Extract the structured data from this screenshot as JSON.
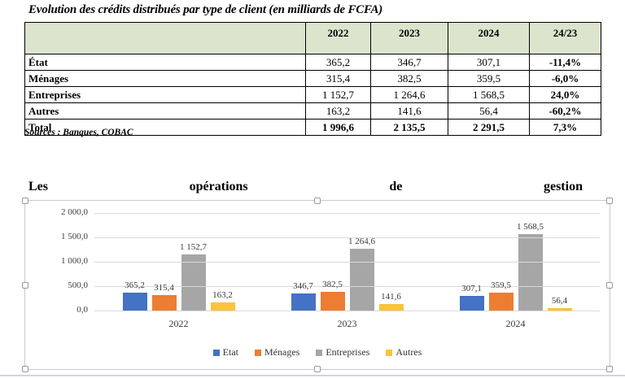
{
  "document": {
    "title": "Evolution des crédits distribués par type de client (en milliards de FCFA)",
    "source_note": "Sources : Banques, COBAC"
  },
  "table": {
    "header": [
      "",
      "2022",
      "2023",
      "2024",
      "24/23"
    ],
    "header_bg": "#dde4ce",
    "rows": [
      {
        "label": "État",
        "v2022": "365,2",
        "v2023": "346,7",
        "v2024": "307,1",
        "change": "-11,4%"
      },
      {
        "label": "Ménages",
        "v2022": "315,4",
        "v2023": "382,5",
        "v2024": "359,5",
        "change": "-6,0%"
      },
      {
        "label": "Entreprises",
        "v2022": "1 152,7",
        "v2023": "1 264,6",
        "v2024": "1 568,5",
        "change": "24,0%"
      },
      {
        "label": "Autres",
        "v2022": "163,2",
        "v2023": "141,6",
        "v2024": "56,4",
        "change": "-60,2%"
      },
      {
        "label": "Total",
        "v2022": "1 996,6",
        "v2023": "2 135,5",
        "v2024": "2 291,5",
        "change": "7,3%"
      }
    ]
  },
  "chart_heading": {
    "words": [
      "Les",
      "opérations",
      "de",
      "gestion"
    ]
  },
  "chart_data": {
    "type": "bar",
    "title": "Les opérations de gestion",
    "categories": [
      "2022",
      "2023",
      "2024"
    ],
    "series": [
      {
        "name": "Etat",
        "color": "#4472C4",
        "values": [
          365.2,
          346.7,
          307.1
        ],
        "labels": [
          "365,2",
          "346,7",
          "307,1"
        ]
      },
      {
        "name": "Ménages",
        "color": "#ED7D31",
        "values": [
          315.4,
          382.5,
          359.5
        ],
        "labels": [
          "315,4",
          "382,5",
          "359,5"
        ]
      },
      {
        "name": "Entreprises",
        "color": "#A6A6A6",
        "values": [
          1152.7,
          1264.6,
          1568.5
        ],
        "labels": [
          "1 152,7",
          "1 264,6",
          "1 568,5"
        ]
      },
      {
        "name": "Autres",
        "color": "#FBC33C",
        "values": [
          163.2,
          141.6,
          56.4
        ],
        "labels": [
          "163,2",
          "141,6",
          "56,4"
        ]
      }
    ],
    "y_axis": {
      "max": 2000,
      "ticks": [
        2000,
        1500,
        1000,
        500,
        0
      ],
      "tick_labels": [
        "2 000,0",
        "1 500,0",
        "1 000,0",
        "500,0",
        "0,0"
      ]
    },
    "xlabel": "",
    "ylabel": "",
    "grid": true,
    "legend_position": "bottom"
  }
}
